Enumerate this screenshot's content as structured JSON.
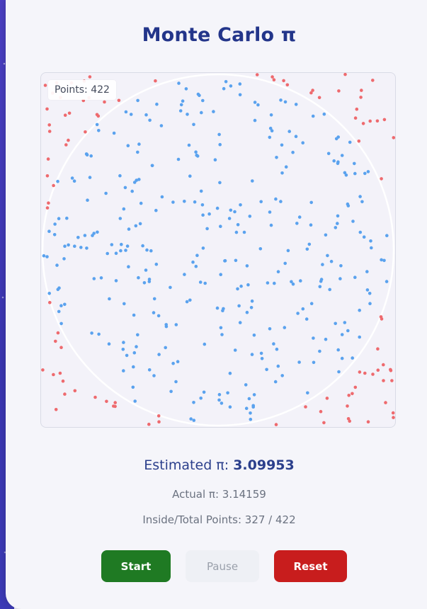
{
  "app": {
    "title": "Monte Carlo π"
  },
  "simulation": {
    "points_label": "Points: 422",
    "total_points": 422,
    "inside_points": 327,
    "colors": {
      "inside": "#5aa2ee",
      "outside": "#ee6a6e",
      "circle": "#ffffff"
    }
  },
  "stats": {
    "estimate_label": "Estimated π:",
    "estimate_value": "3.09953",
    "actual": "Actual π: 3.14159",
    "ratio": "Inside/Total Points: 327 / 422"
  },
  "controls": {
    "start_label": "Start",
    "pause_label": "Pause",
    "reset_label": "Reset",
    "colors": {
      "start": "#1f7a23",
      "pause": "#eef0f5",
      "reset": "#c81d1d"
    }
  }
}
